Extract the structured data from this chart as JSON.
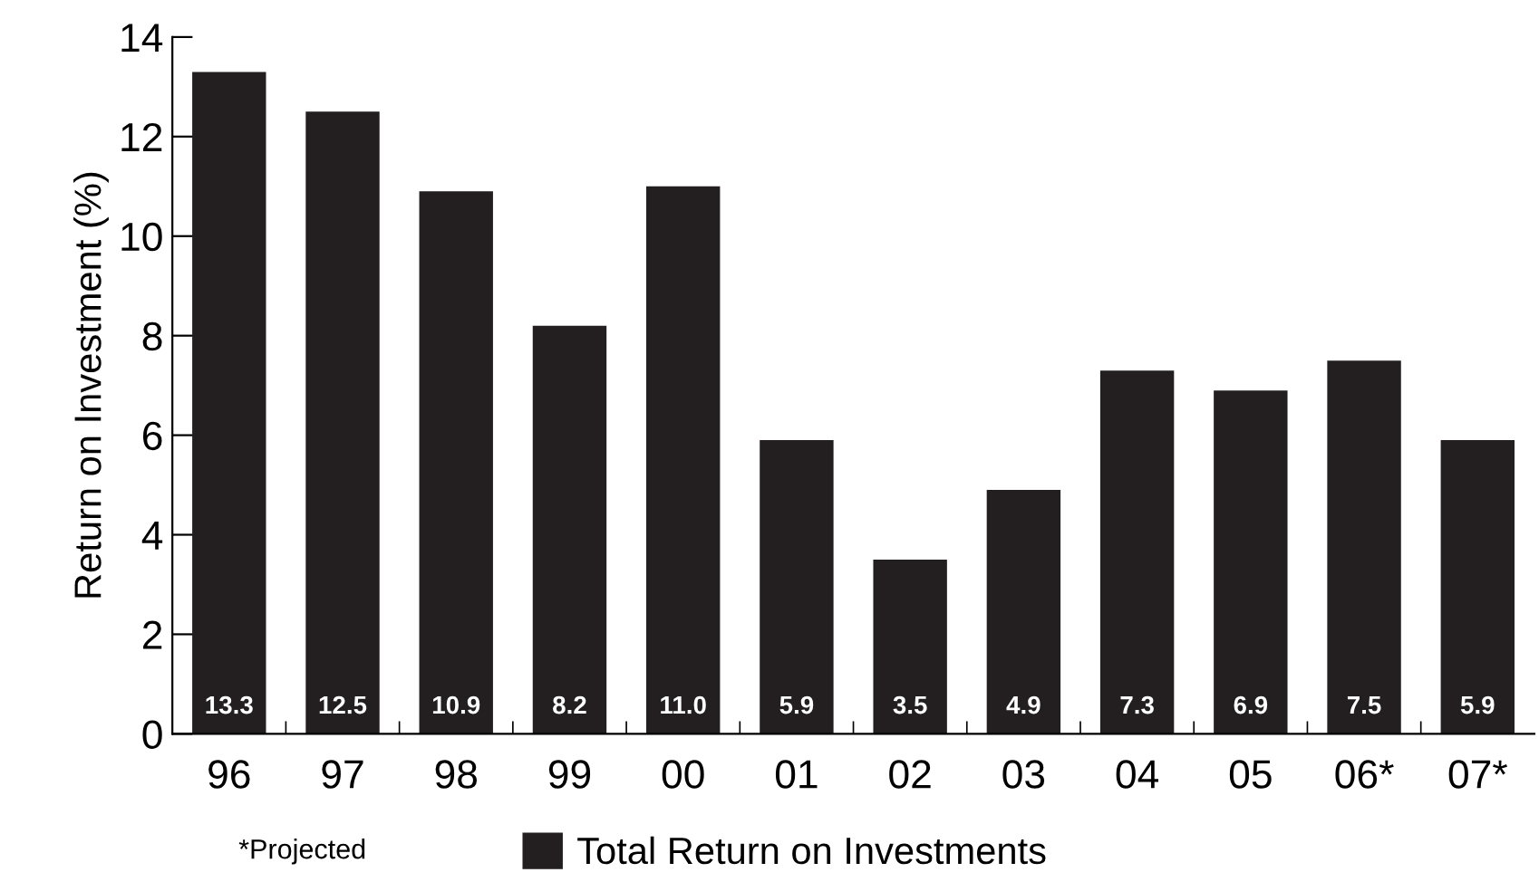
{
  "chart_data": {
    "type": "bar",
    "ylabel": "Return on Investment (%)",
    "categories": [
      "96",
      "97",
      "98",
      "99",
      "00",
      "01",
      "02",
      "03",
      "04",
      "05",
      "06*",
      "07*"
    ],
    "series": [
      {
        "name": "Total Return on Investments",
        "color": "#231f20",
        "values": [
          13.3,
          12.5,
          10.9,
          8.2,
          11.0,
          5.9,
          3.5,
          4.9,
          7.3,
          6.9,
          7.5,
          5.9
        ],
        "value_labels": [
          "13.3",
          "12.5",
          "10.9",
          "8.2",
          "11.0",
          "5.9",
          "3.5",
          "4.9",
          "7.3",
          "6.9",
          "7.5",
          "5.9"
        ]
      }
    ],
    "ylim": [
      0,
      14
    ],
    "yticks": [
      0,
      2,
      4,
      6,
      8,
      10,
      12,
      14
    ],
    "grid": false,
    "legend": "bottom",
    "annotations": [
      "*Projected"
    ]
  }
}
